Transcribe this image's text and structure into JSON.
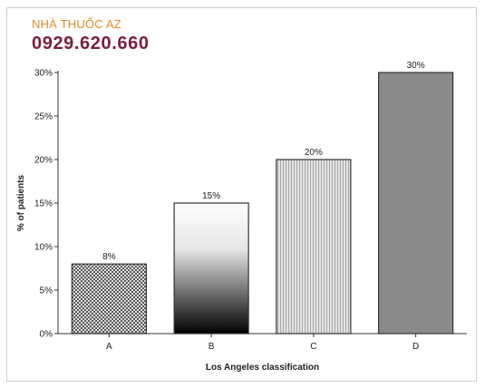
{
  "watermark": {
    "name": "NHÀ THUỐC AZ",
    "phone": "0929.620.660"
  },
  "chart_data": {
    "type": "bar",
    "categories": [
      "A",
      "B",
      "C",
      "D"
    ],
    "values": [
      8,
      15,
      20,
      30
    ],
    "data_labels": [
      "8%",
      "15%",
      "20%",
      "30%"
    ],
    "xlabel": "Los Angeles classification",
    "ylabel": "% of patients",
    "ylim": [
      0,
      30
    ],
    "yticks": [
      0,
      5,
      10,
      15,
      20,
      25,
      30
    ],
    "ytick_labels": [
      "0%",
      "5%",
      "10%",
      "15%",
      "20%",
      "25%",
      "30%"
    ],
    "grid": false,
    "legend": "none",
    "bar_styles": [
      "crosshatch-pattern",
      "white-to-black-gradient",
      "vertical-stripe-gray",
      "solid-gray"
    ],
    "colors": {
      "bar_outline": "#333333",
      "bar_d_fill": "#8a8a8a",
      "stripe_light": "#e2e2e2",
      "stripe_dark": "#a9a9a9"
    }
  }
}
